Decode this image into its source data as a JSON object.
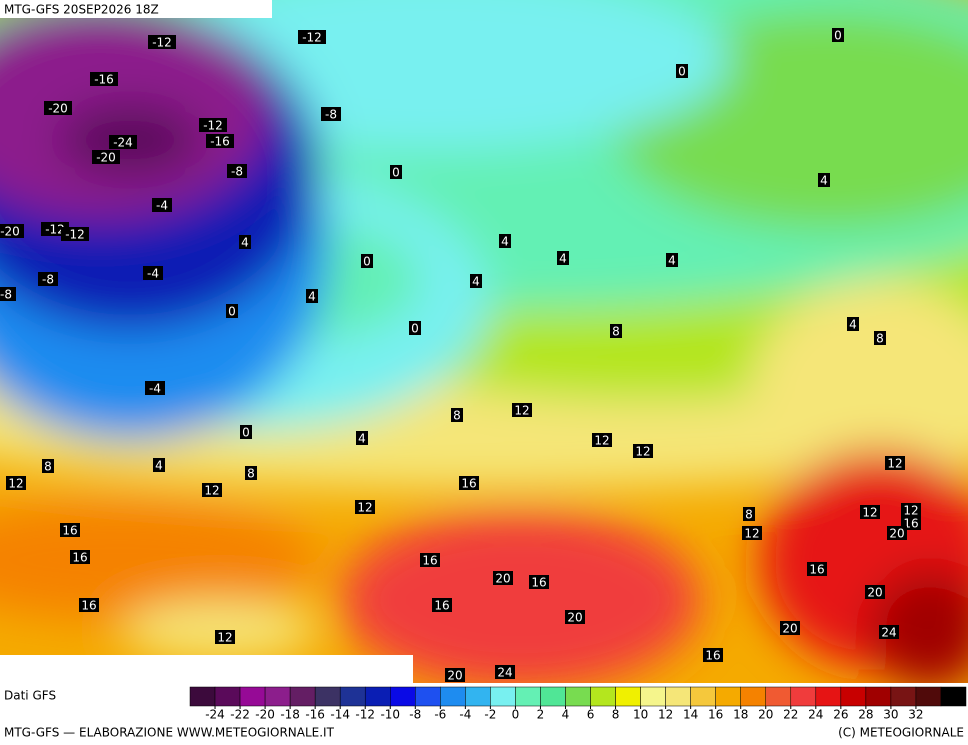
{
  "header": {
    "title": "MTG-GFS 20SEP2026 18Z"
  },
  "map": {
    "labels": [
      "-12",
      "-12",
      "-16",
      "-20",
      "-24",
      "-20",
      "-12",
      "-16",
      "-8",
      "-8",
      "-4",
      "-20",
      "-12",
      "-12",
      "-8",
      "-4",
      "-8",
      "-4",
      "0",
      "0",
      "0",
      "4",
      "0",
      "4",
      "0",
      "0",
      "4",
      "4",
      "4",
      "4",
      "4",
      "4",
      "8",
      "8",
      "8",
      "12",
      "12",
      "12",
      "0",
      "4",
      "4",
      "8",
      "8",
      "12",
      "12",
      "12",
      "16",
      "12",
      "8",
      "12",
      "12",
      "12",
      "16",
      "20",
      "16",
      "16",
      "16",
      "20",
      "16",
      "16",
      "16",
      "20",
      "16",
      "20",
      "24",
      "20",
      "16",
      "12",
      "20",
      "24"
    ]
  },
  "footer": {
    "source": "Dati GFS",
    "credit": "MTG-GFS — ELABORAZIONE WWW.METEOGIORNALE.IT",
    "copyright": "(C) METEOGIORNALE"
  },
  "colorbar": {
    "ticks": [
      -24,
      -22,
      -20,
      -18,
      -16,
      -14,
      -12,
      -10,
      -8,
      -6,
      -4,
      -2,
      0,
      2,
      4,
      6,
      8,
      10,
      12,
      14,
      16,
      18,
      20,
      22,
      24,
      26,
      28,
      30,
      32
    ],
    "colors": [
      "#3c0a3c",
      "#5a0a5a",
      "#960a96",
      "#8c1e8c",
      "#641e64",
      "#3c3264",
      "#1e3296",
      "#0a1eb4",
      "#0a0ae6",
      "#1e50f0",
      "#1e8cf0",
      "#32b4f0",
      "#78f0f0",
      "#64f0b4",
      "#50e696",
      "#78dc50",
      "#b4e61e",
      "#f0f000",
      "#f5f58c",
      "#f5e678",
      "#f5c83c",
      "#f5aa00",
      "#f58200",
      "#f05a32",
      "#f03c3c",
      "#e61414",
      "#c80000",
      "#a00000",
      "#781414",
      "#500a0a",
      "#000000"
    ]
  }
}
